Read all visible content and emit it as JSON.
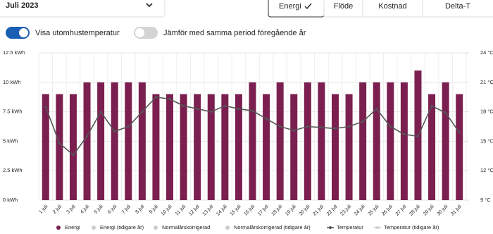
{
  "header": {
    "period": "Juli 2023",
    "tabs": [
      "Energi",
      "Flöde",
      "Kostnad",
      "Delta-T"
    ],
    "selected_tab": 0
  },
  "toggles": [
    {
      "label": "Visa utomhustemperatur",
      "on": true
    },
    {
      "label": "Jämför med samma period föregående år",
      "on": false
    }
  ],
  "chart_data": {
    "type": "bar",
    "categories": [
      "1 juli",
      "2 juli",
      "3 juli",
      "4 juli",
      "5 juli",
      "6 juli",
      "7 juli",
      "8 juli",
      "9 juli",
      "10 juli",
      "11 juli",
      "12 juli",
      "13 juli",
      "14 juli",
      "15 juli",
      "16 juli",
      "17 juli",
      "18 juli",
      "19 juli",
      "20 juli",
      "21 juli",
      "22 juli",
      "23 juli",
      "24 juli",
      "25 juli",
      "26 juli",
      "27 juli",
      "28 juli",
      "29 juli",
      "30 juli",
      "31 juli"
    ],
    "series": [
      {
        "name": "Energi",
        "color": "#7a1f4f",
        "values": [
          9,
          9,
          9,
          10,
          10,
          10,
          10,
          10,
          9,
          9,
          9,
          9,
          9,
          9,
          9,
          10,
          9,
          10,
          9,
          10,
          10,
          9,
          9,
          10,
          10,
          10,
          10,
          11,
          9,
          10,
          9
        ]
      },
      {
        "name": "Temperatur",
        "type": "line",
        "axis": "y2",
        "color": "#555555",
        "values": [
          18.5,
          14.8,
          13.6,
          15.5,
          18.0,
          16.0,
          16.5,
          18.0,
          19.5,
          19.3,
          18.6,
          18.3,
          18.0,
          18.6,
          18.3,
          18.1,
          17.3,
          16.5,
          16.1,
          16.5,
          16.4,
          16.3,
          16.5,
          17.0,
          18.3,
          16.5,
          15.7,
          15.5,
          18.6,
          17.9,
          15.9
        ]
      }
    ],
    "inactive_series": [
      {
        "name": "Energi (tidigare år)",
        "color": "#cccccc"
      },
      {
        "name": "Normalårskorrigerad",
        "color": "#cccccc"
      },
      {
        "name": "Normalårskorrigerad (tidigare år)",
        "color": "#cccccc"
      },
      {
        "name": "Temperatur (tidigare år)",
        "color": "#cccccc"
      }
    ],
    "ylim": [
      0,
      12.5
    ],
    "yticks": [
      {
        "value": 0,
        "label": "0 kWh"
      },
      {
        "value": 2.5,
        "label": "2.5 kWh"
      },
      {
        "value": 5,
        "label": "5 kWh"
      },
      {
        "value": 7.5,
        "label": "7.5 kWh"
      },
      {
        "value": 10,
        "label": "10 kWh"
      },
      {
        "value": 12.5,
        "label": "12.5 kWh"
      }
    ],
    "y2lim": [
      9,
      24
    ],
    "y2ticks": [
      {
        "value": 9,
        "label": "9 °C"
      },
      {
        "value": 12,
        "label": "12 °C"
      },
      {
        "value": 15,
        "label": "15 °C"
      },
      {
        "value": 18,
        "label": "18 °C"
      },
      {
        "value": 21,
        "label": "21 °C"
      },
      {
        "value": 24,
        "label": "24 °C"
      }
    ],
    "grid": true
  }
}
